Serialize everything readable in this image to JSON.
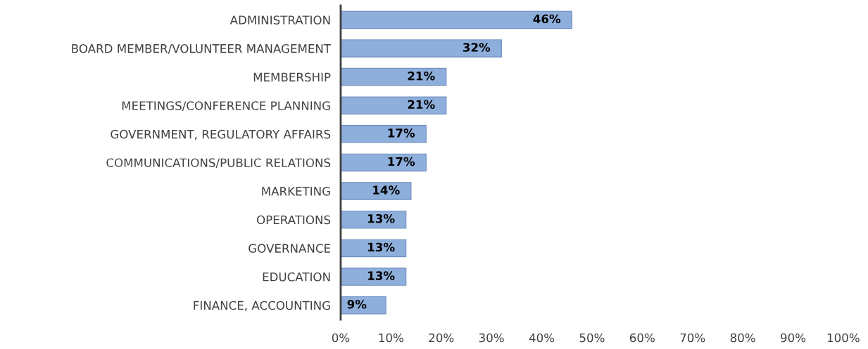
{
  "chart_data": {
    "type": "bar",
    "orientation": "horizontal",
    "categories": [
      "ADMINISTRATION",
      "BOARD MEMBER/VOLUNTEER MANAGEMENT",
      "MEMBERSHIP",
      "MEETINGS/CONFERENCE PLANNING",
      "GOVERNMENT, REGULATORY AFFAIRS",
      "COMMUNICATIONS/PUBLIC RELATIONS",
      "MARKETING",
      "OPERATIONS",
      "GOVERNANCE",
      "EDUCATION",
      "FINANCE, ACCOUNTING"
    ],
    "values": [
      46,
      32,
      21,
      21,
      17,
      17,
      14,
      13,
      13,
      13,
      9
    ],
    "value_labels": [
      "46%",
      "32%",
      "21%",
      "21%",
      "17%",
      "17%",
      "14%",
      "13%",
      "13%",
      "13%",
      "9%"
    ],
    "color": "#8eafdb",
    "xlim": [
      0,
      100
    ],
    "xticks": [
      {
        "value": 0,
        "label": "0%"
      },
      {
        "value": 10,
        "label": "10%"
      },
      {
        "value": 20,
        "label": "20%"
      },
      {
        "value": 30,
        "label": "30%"
      },
      {
        "value": 40,
        "label": "40%"
      },
      {
        "value": 50,
        "label": "50%"
      },
      {
        "value": 60,
        "label": "60%"
      },
      {
        "value": 70,
        "label": "70%"
      },
      {
        "value": 80,
        "label": "80%"
      },
      {
        "value": 90,
        "label": "90%"
      },
      {
        "value": 100,
        "label": "100%"
      }
    ],
    "grid": false,
    "legend": false
  }
}
